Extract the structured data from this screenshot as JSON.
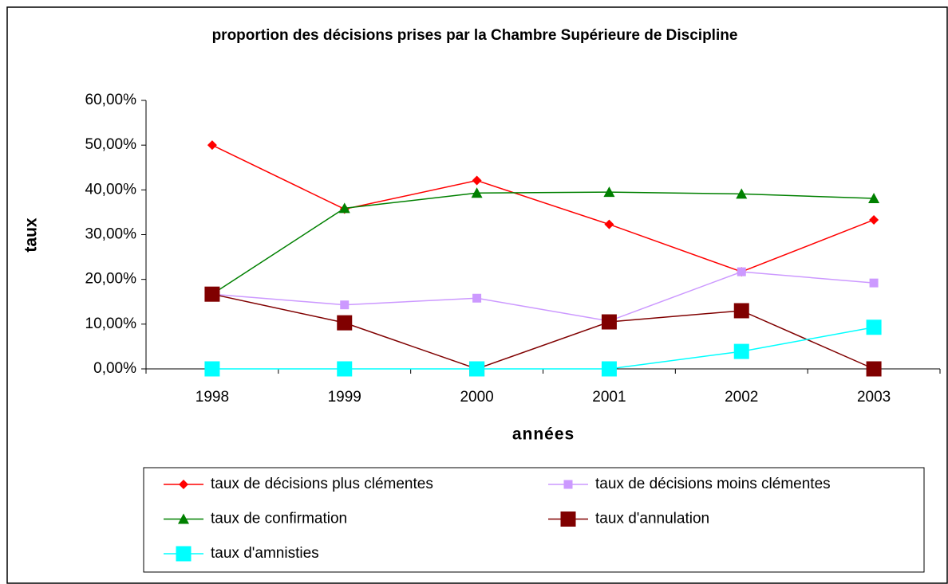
{
  "chart_data": {
    "type": "line",
    "title": "proportion des décisions prises par la Chambre Supérieure de Discipline",
    "x_label": "années",
    "y_label": "taux",
    "categories": [
      "1998",
      "1999",
      "2000",
      "2001",
      "2002",
      "2003"
    ],
    "series": [
      {
        "name": "taux de décisions plus clémentes",
        "color": "#ff0000",
        "marker": "diamond",
        "values": [
          50,
          35.7,
          42.1,
          32.3,
          21.7,
          33.3
        ]
      },
      {
        "name": "taux de décisions moins clémentes",
        "color": "#cc99ff",
        "marker": "square",
        "values": [
          16.7,
          14.3,
          15.8,
          10.7,
          21.7,
          19.2
        ]
      },
      {
        "name": "taux de confirmation",
        "color": "#008000",
        "marker": "triangle",
        "values": [
          16.7,
          35.9,
          39.3,
          39.5,
          39.1,
          38.1
        ]
      },
      {
        "name": "taux d'annulation",
        "color": "#800000",
        "marker": "big-square",
        "values": [
          16.7,
          10.3,
          0,
          10.5,
          13,
          0
        ]
      },
      {
        "name": "taux d'amnisties",
        "color": "#00ffff",
        "marker": "big-square",
        "values": [
          0,
          0,
          0,
          0,
          3.9,
          9.3
        ]
      }
    ],
    "ylim": [
      0,
      60
    ],
    "yticks": [
      {
        "value": 0,
        "label": "0,00%"
      },
      {
        "value": 10,
        "label": "10,00%"
      },
      {
        "value": 20,
        "label": "20,00%"
      },
      {
        "value": 30,
        "label": "30,00%"
      },
      {
        "value": 40,
        "label": "40,00%"
      },
      {
        "value": 50,
        "label": "50,00%"
      },
      {
        "value": 60,
        "label": "60,00%"
      }
    ]
  }
}
